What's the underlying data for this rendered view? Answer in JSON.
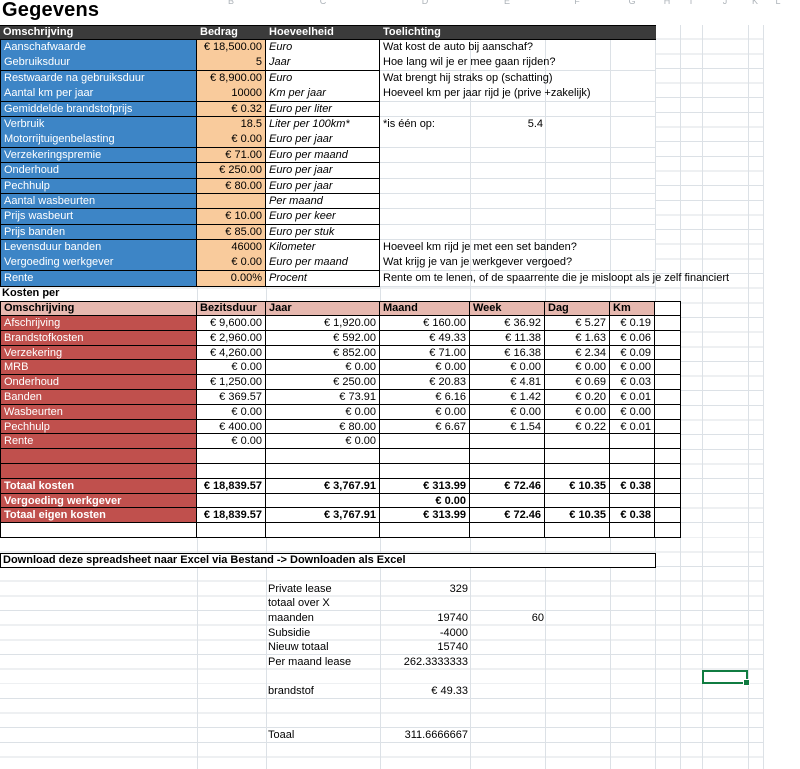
{
  "title": "Gegevens",
  "column_letters": [
    "B",
    "C",
    "D",
    "E",
    "F",
    "G",
    "H",
    "I",
    "J",
    "K",
    "L"
  ],
  "gegevens": {
    "headers": {
      "omschrijving": "Omschrijving",
      "bedrag": "Bedrag",
      "hoeveelheid": "Hoeveelheid",
      "toelichting": "Toelichting"
    },
    "rows": [
      {
        "label": "Aanschafwaarde",
        "bedrag": "€ 18,500.00",
        "hoeveelheid": "Euro",
        "toelichting": "Wat kost de auto bij aanschaf?",
        "toelichting_value": ""
      },
      {
        "label": "Gebruiksduur",
        "bedrag": "5",
        "hoeveelheid": "Jaar",
        "toelichting": "Hoe lang wil je er mee gaan rijden?",
        "toelichting_value": ""
      },
      {
        "label": "Restwaarde na gebruiksduur",
        "bedrag": "€ 8,900.00",
        "hoeveelheid": "Euro",
        "toelichting": "Wat brengt hij straks op (schatting)",
        "toelichting_value": ""
      },
      {
        "label": "Aantal km per jaar",
        "bedrag": "10000",
        "hoeveelheid": "Km per jaar",
        "toelichting": "Hoeveel km per jaar rijd je (prive +zakelijk)",
        "toelichting_value": ""
      },
      {
        "label": "Gemiddelde brandstofprijs",
        "bedrag": "€ 0.32",
        "hoeveelheid": "Euro per liter",
        "toelichting": "",
        "toelichting_value": ""
      },
      {
        "label": "Verbruik",
        "bedrag": "18.5",
        "hoeveelheid": "Liter per 100km*",
        "toelichting": "*is één op:",
        "toelichting_value": "5.4"
      },
      {
        "label": "Motorrijtuigenbelasting",
        "bedrag": "€ 0.00",
        "hoeveelheid": "Euro per jaar",
        "toelichting": "",
        "toelichting_value": ""
      },
      {
        "label": "Verzekeringspremie",
        "bedrag": "€ 71.00",
        "hoeveelheid": "Euro per maand",
        "toelichting": "",
        "toelichting_value": ""
      },
      {
        "label": "Onderhoud",
        "bedrag": "€ 250.00",
        "hoeveelheid": "Euro per jaar",
        "toelichting": "",
        "toelichting_value": ""
      },
      {
        "label": "Pechhulp",
        "bedrag": "€ 80.00",
        "hoeveelheid": "Euro per jaar",
        "toelichting": "",
        "toelichting_value": ""
      },
      {
        "label": "Aantal wasbeurten",
        "bedrag": "",
        "hoeveelheid": "Per maand",
        "toelichting": "",
        "toelichting_value": ""
      },
      {
        "label": "Prijs wasbeurt",
        "bedrag": "€ 10.00",
        "hoeveelheid": "Euro per keer",
        "toelichting": "",
        "toelichting_value": ""
      },
      {
        "label": "Prijs banden",
        "bedrag": "€ 85.00",
        "hoeveelheid": "Euro per stuk",
        "toelichting": "",
        "toelichting_value": ""
      },
      {
        "label": "Levensduur banden",
        "bedrag": "46000",
        "hoeveelheid": "Kilometer",
        "toelichting": "Hoeveel km rijd je met een set banden?",
        "toelichting_value": ""
      },
      {
        "label": "Vergoeding werkgever",
        "bedrag": "€ 0.00",
        "hoeveelheid": "Euro per maand",
        "toelichting": "Wat krijg je van je werkgever vergoed?",
        "toelichting_value": ""
      },
      {
        "label": "Rente",
        "bedrag": "0.00%",
        "hoeveelheid": "Procent",
        "toelichting": "Rente om te lenen, of de spaarrente die je misloopt als je zelf financiert",
        "toelichting_value": ""
      }
    ]
  },
  "kosten": {
    "title": "Kosten per",
    "headers": [
      "Omschrijving",
      "Bezitsduur",
      "Jaar",
      "Maand",
      "Week",
      "Dag",
      "Km"
    ],
    "rows": [
      {
        "label": "Afschrijving",
        "values": [
          "€ 9,600.00",
          "€ 1,920.00",
          "€ 160.00",
          "€ 36.92",
          "€ 5.27",
          "€ 0.19"
        ],
        "bold": false
      },
      {
        "label": "Brandstofkosten",
        "values": [
          "€ 2,960.00",
          "€ 592.00",
          "€ 49.33",
          "€ 11.38",
          "€ 1.63",
          "€ 0.06"
        ],
        "bold": false
      },
      {
        "label": "Verzekering",
        "values": [
          "€ 4,260.00",
          "€ 852.00",
          "€ 71.00",
          "€ 16.38",
          "€ 2.34",
          "€ 0.09"
        ],
        "bold": false
      },
      {
        "label": "MRB",
        "values": [
          "€ 0.00",
          "€ 0.00",
          "€ 0.00",
          "€ 0.00",
          "€ 0.00",
          "€ 0.00"
        ],
        "bold": false
      },
      {
        "label": "Onderhoud",
        "values": [
          "€ 1,250.00",
          "€ 250.00",
          "€ 20.83",
          "€ 4.81",
          "€ 0.69",
          "€ 0.03"
        ],
        "bold": false
      },
      {
        "label": "Banden",
        "values": [
          "€ 369.57",
          "€ 73.91",
          "€ 6.16",
          "€ 1.42",
          "€ 0.20",
          "€ 0.01"
        ],
        "bold": false
      },
      {
        "label": "Wasbeurten",
        "values": [
          "€ 0.00",
          "€ 0.00",
          "€ 0.00",
          "€ 0.00",
          "€ 0.00",
          "€ 0.00"
        ],
        "bold": false
      },
      {
        "label": "Pechhulp",
        "values": [
          "€ 400.00",
          "€ 80.00",
          "€ 6.67",
          "€ 1.54",
          "€ 0.22",
          "€ 0.01"
        ],
        "bold": false
      },
      {
        "label": "Rente",
        "values": [
          "€ 0.00",
          "€ 0.00",
          "",
          "",
          "",
          ""
        ],
        "bold": false
      },
      {
        "label": "",
        "values": [
          "",
          "",
          "",
          "",
          "",
          ""
        ],
        "bold": false
      },
      {
        "label": "",
        "values": [
          "",
          "",
          "",
          "",
          "",
          ""
        ],
        "bold": false
      },
      {
        "label": "Totaal kosten",
        "values": [
          "€ 18,839.57",
          "€ 3,767.91",
          "€ 313.99",
          "€ 72.46",
          "€ 10.35",
          "€ 0.38"
        ],
        "bold": true
      },
      {
        "label": "Vergoeding werkgever",
        "values": [
          "",
          "",
          "€ 0.00",
          "",
          "",
          ""
        ],
        "bold": true
      },
      {
        "label": "Totaal eigen kosten",
        "values": [
          "€ 18,839.57",
          "€ 3,767.91",
          "€ 313.99",
          "€ 72.46",
          "€ 10.35",
          "€ 0.38"
        ],
        "bold": true
      }
    ]
  },
  "download_note": "Download deze spreadsheet naar Excel via Bestand -> Downloaden als Excel",
  "lease": {
    "rows": [
      {
        "label": "Private lease",
        "value": "329",
        "extra": ""
      },
      {
        "label": "totaal over X",
        "value": "",
        "extra": ""
      },
      {
        "label": "maanden",
        "value": "19740",
        "extra": "60"
      },
      {
        "label": "Subsidie",
        "value": "-4000",
        "extra": ""
      },
      {
        "label": "Nieuw totaal",
        "value": "15740",
        "extra": ""
      },
      {
        "label": "Per maand lease",
        "value": "262.3333333",
        "extra": ""
      },
      {
        "label": "",
        "value": "",
        "extra": ""
      },
      {
        "label": "brandstof",
        "value": "€ 49.33",
        "extra": ""
      },
      {
        "label": "",
        "value": "",
        "extra": ""
      },
      {
        "label": "",
        "value": "",
        "extra": ""
      },
      {
        "label": "Toaal",
        "value": "311.6666667",
        "extra": ""
      }
    ]
  },
  "colors": {
    "header_bg": "#3b3b3b",
    "label_blue": "#3d85c6",
    "amount_orange": "#f9cb9c",
    "kosten_header_pink": "#e6b8af",
    "kosten_label_red": "#c0504d",
    "selection_green": "#107c41",
    "gridline": "#dce1e6"
  }
}
